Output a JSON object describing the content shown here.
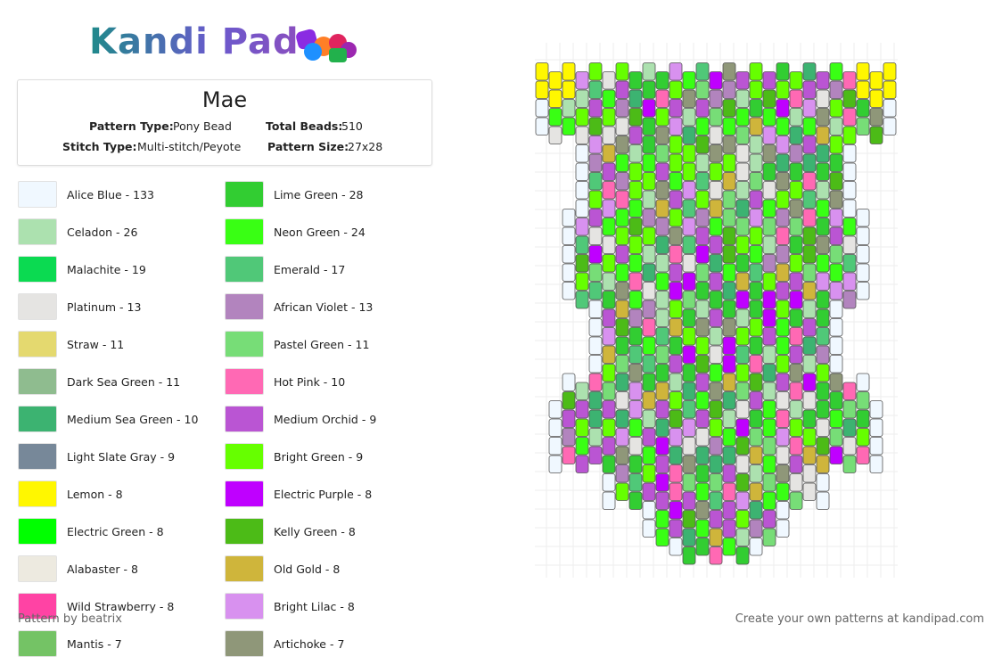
{
  "header": {
    "logo": "Kandi Pad",
    "title": "Mae",
    "info": [
      {
        "label": "Pattern Type:",
        "value": "Pony Bead"
      },
      {
        "label": "Total Beads:",
        "value": "510"
      },
      {
        "label": "Stitch Type:",
        "value": "Multi-stitch/Peyote"
      },
      {
        "label": "Pattern Size:",
        "value": "27x28"
      }
    ]
  },
  "legend": {
    "columns": [
      [
        {
          "label": "Alice Blue - 133",
          "color": "#f0f8ff"
        },
        {
          "label": "Celadon - 26",
          "color": "#ace1af"
        },
        {
          "label": "Malachite - 19",
          "color": "#0bda51"
        },
        {
          "label": "Platinum - 13",
          "color": "#e5e4e2"
        },
        {
          "label": "Straw - 11",
          "color": "#e4d96f"
        },
        {
          "label": "Dark Sea Green - 11",
          "color": "#8fbc8f"
        },
        {
          "label": "Medium Sea Green - 10",
          "color": "#3cb371"
        },
        {
          "label": "Light Slate Gray - 9",
          "color": "#778899"
        },
        {
          "label": "Lemon - 8",
          "color": "#fff700"
        },
        {
          "label": "Electric Green - 8",
          "color": "#00ff00"
        },
        {
          "label": "Alabaster - 8",
          "color": "#edeae0"
        },
        {
          "label": "Wild Strawberry - 8",
          "color": "#ff43a4"
        },
        {
          "label": "Mantis - 7",
          "color": "#74c365"
        }
      ],
      [
        {
          "label": "Lime Green - 28",
          "color": "#32cd32"
        },
        {
          "label": "Neon Green - 24",
          "color": "#39ff14"
        },
        {
          "label": "Emerald - 17",
          "color": "#50c878"
        },
        {
          "label": "African Violet - 13",
          "color": "#b284be"
        },
        {
          "label": "Pastel Green - 11",
          "color": "#77dd77"
        },
        {
          "label": "Hot Pink - 10",
          "color": "#ff69b4"
        },
        {
          "label": "Medium Orchid - 9",
          "color": "#ba55d3"
        },
        {
          "label": "Bright Green - 9",
          "color": "#66ff00"
        },
        {
          "label": "Electric Purple - 8",
          "color": "#bf00ff"
        },
        {
          "label": "Kelly Green - 8",
          "color": "#4cbb17"
        },
        {
          "label": "Old Gold - 8",
          "color": "#cfb53b"
        },
        {
          "label": "Bright Lilac - 8",
          "color": "#d891ef"
        },
        {
          "label": "Artichoke - 7",
          "color": "#8f9779"
        }
      ]
    ]
  },
  "footer": {
    "credit": "Pattern by beatrix",
    "promo": "Create your own patterns at kandipad.com"
  }
}
